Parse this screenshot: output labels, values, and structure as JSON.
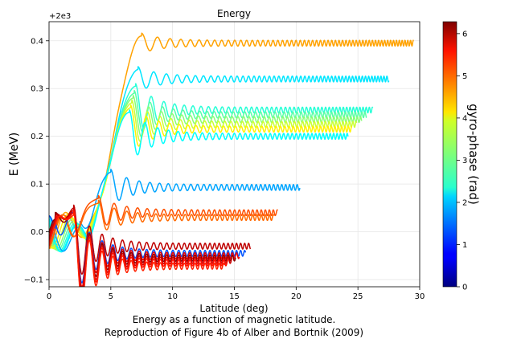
{
  "chart_data": {
    "type": "line",
    "title": "Energy",
    "xlabel": "Latitude (deg)",
    "ylabel": "E (MeV)",
    "offset_label": "+2e3",
    "xlim": [
      0,
      30
    ],
    "ylim": [
      -0.115,
      0.44
    ],
    "x_ticks": [
      0,
      5,
      10,
      15,
      20,
      25,
      30
    ],
    "y_ticks": [
      -0.1,
      0.0,
      0.1,
      0.2,
      0.3,
      0.4
    ],
    "y_tick_labels": [
      "−0.1",
      "0.0",
      "0.1",
      "0.2",
      "0.3",
      "0.4"
    ],
    "grid": true,
    "caption_line1": "Energy as a function of magnetic latitude.",
    "caption_line2": "Reproduction of Figure 4b of Alber and Bortnik (2009)",
    "colorbar": {
      "label": "gyro-phase (rad)",
      "range": [
        0,
        6.283
      ],
      "ticks": [
        0,
        1,
        2,
        3,
        4,
        5,
        6
      ],
      "colormap": "jet"
    },
    "series": [
      {
        "phase": 4.5,
        "final_energy": 0.395,
        "end_lat": 29.5,
        "rise_start": 3.0,
        "rise_end": 7.5,
        "peak": 0.41
      },
      {
        "phase": 2.2,
        "final_energy": 0.32,
        "end_lat": 27.5,
        "rise_start": 3.0,
        "rise_end": 7.2,
        "peak": 0.34
      },
      {
        "phase": 2.6,
        "final_energy": 0.255,
        "end_lat": 26.2,
        "rise_start": 3.0,
        "rise_end": 7.0,
        "peak": 0.305
      },
      {
        "phase": 2.9,
        "final_energy": 0.245,
        "end_lat": 25.7,
        "rise_start": 3.0,
        "rise_end": 6.9,
        "peak": 0.29
      },
      {
        "phase": 3.2,
        "final_energy": 0.235,
        "end_lat": 25.3,
        "rise_start": 3.0,
        "rise_end": 6.8,
        "peak": 0.28
      },
      {
        "phase": 3.6,
        "final_energy": 0.225,
        "end_lat": 24.9,
        "rise_start": 3.0,
        "rise_end": 6.7,
        "peak": 0.27
      },
      {
        "phase": 4.0,
        "final_energy": 0.215,
        "end_lat": 24.5,
        "rise_start": 3.0,
        "rise_end": 6.6,
        "peak": 0.26
      },
      {
        "phase": 2.35,
        "final_energy": 0.2,
        "end_lat": 24.2,
        "rise_start": 3.0,
        "rise_end": 6.5,
        "peak": 0.25
      },
      {
        "phase": 1.8,
        "final_energy": 0.093,
        "end_lat": 20.3,
        "rise_start": 2.5,
        "rise_end": 5.0,
        "peak": 0.125
      },
      {
        "phase": 5.0,
        "final_energy": 0.04,
        "end_lat": 18.5,
        "rise_start": 1.5,
        "rise_end": 4.0,
        "peak": 0.07
      },
      {
        "phase": 4.85,
        "final_energy": 0.03,
        "end_lat": 18.2,
        "rise_start": 1.5,
        "rise_end": 4.0,
        "peak": 0.06
      },
      {
        "phase": 5.9,
        "final_energy": -0.03,
        "end_lat": 16.3,
        "rise_start": 0.5,
        "rise_end": 2.0,
        "peak": 0.05
      },
      {
        "phase": 1.3,
        "final_energy": -0.045,
        "end_lat": 15.9,
        "rise_start": 0.5,
        "rise_end": 2.0,
        "peak": 0.04
      },
      {
        "phase": 5.6,
        "final_energy": -0.05,
        "end_lat": 15.4,
        "rise_start": 0.5,
        "rise_end": 2.0,
        "peak": 0.04
      },
      {
        "phase": 6.2,
        "final_energy": -0.055,
        "end_lat": 15.1,
        "rise_start": 0.5,
        "rise_end": 2.0,
        "peak": 0.045
      },
      {
        "phase": 5.8,
        "final_energy": -0.06,
        "end_lat": 14.8,
        "rise_start": 0.5,
        "rise_end": 2.0,
        "peak": 0.045
      },
      {
        "phase": 5.4,
        "final_energy": -0.065,
        "end_lat": 14.5,
        "rise_start": 0.5,
        "rise_end": 2.0,
        "peak": 0.04
      },
      {
        "phase": 5.3,
        "final_energy": -0.072,
        "end_lat": 14.2,
        "rise_start": 0.5,
        "rise_end": 2.0,
        "peak": 0.035
      }
    ]
  }
}
